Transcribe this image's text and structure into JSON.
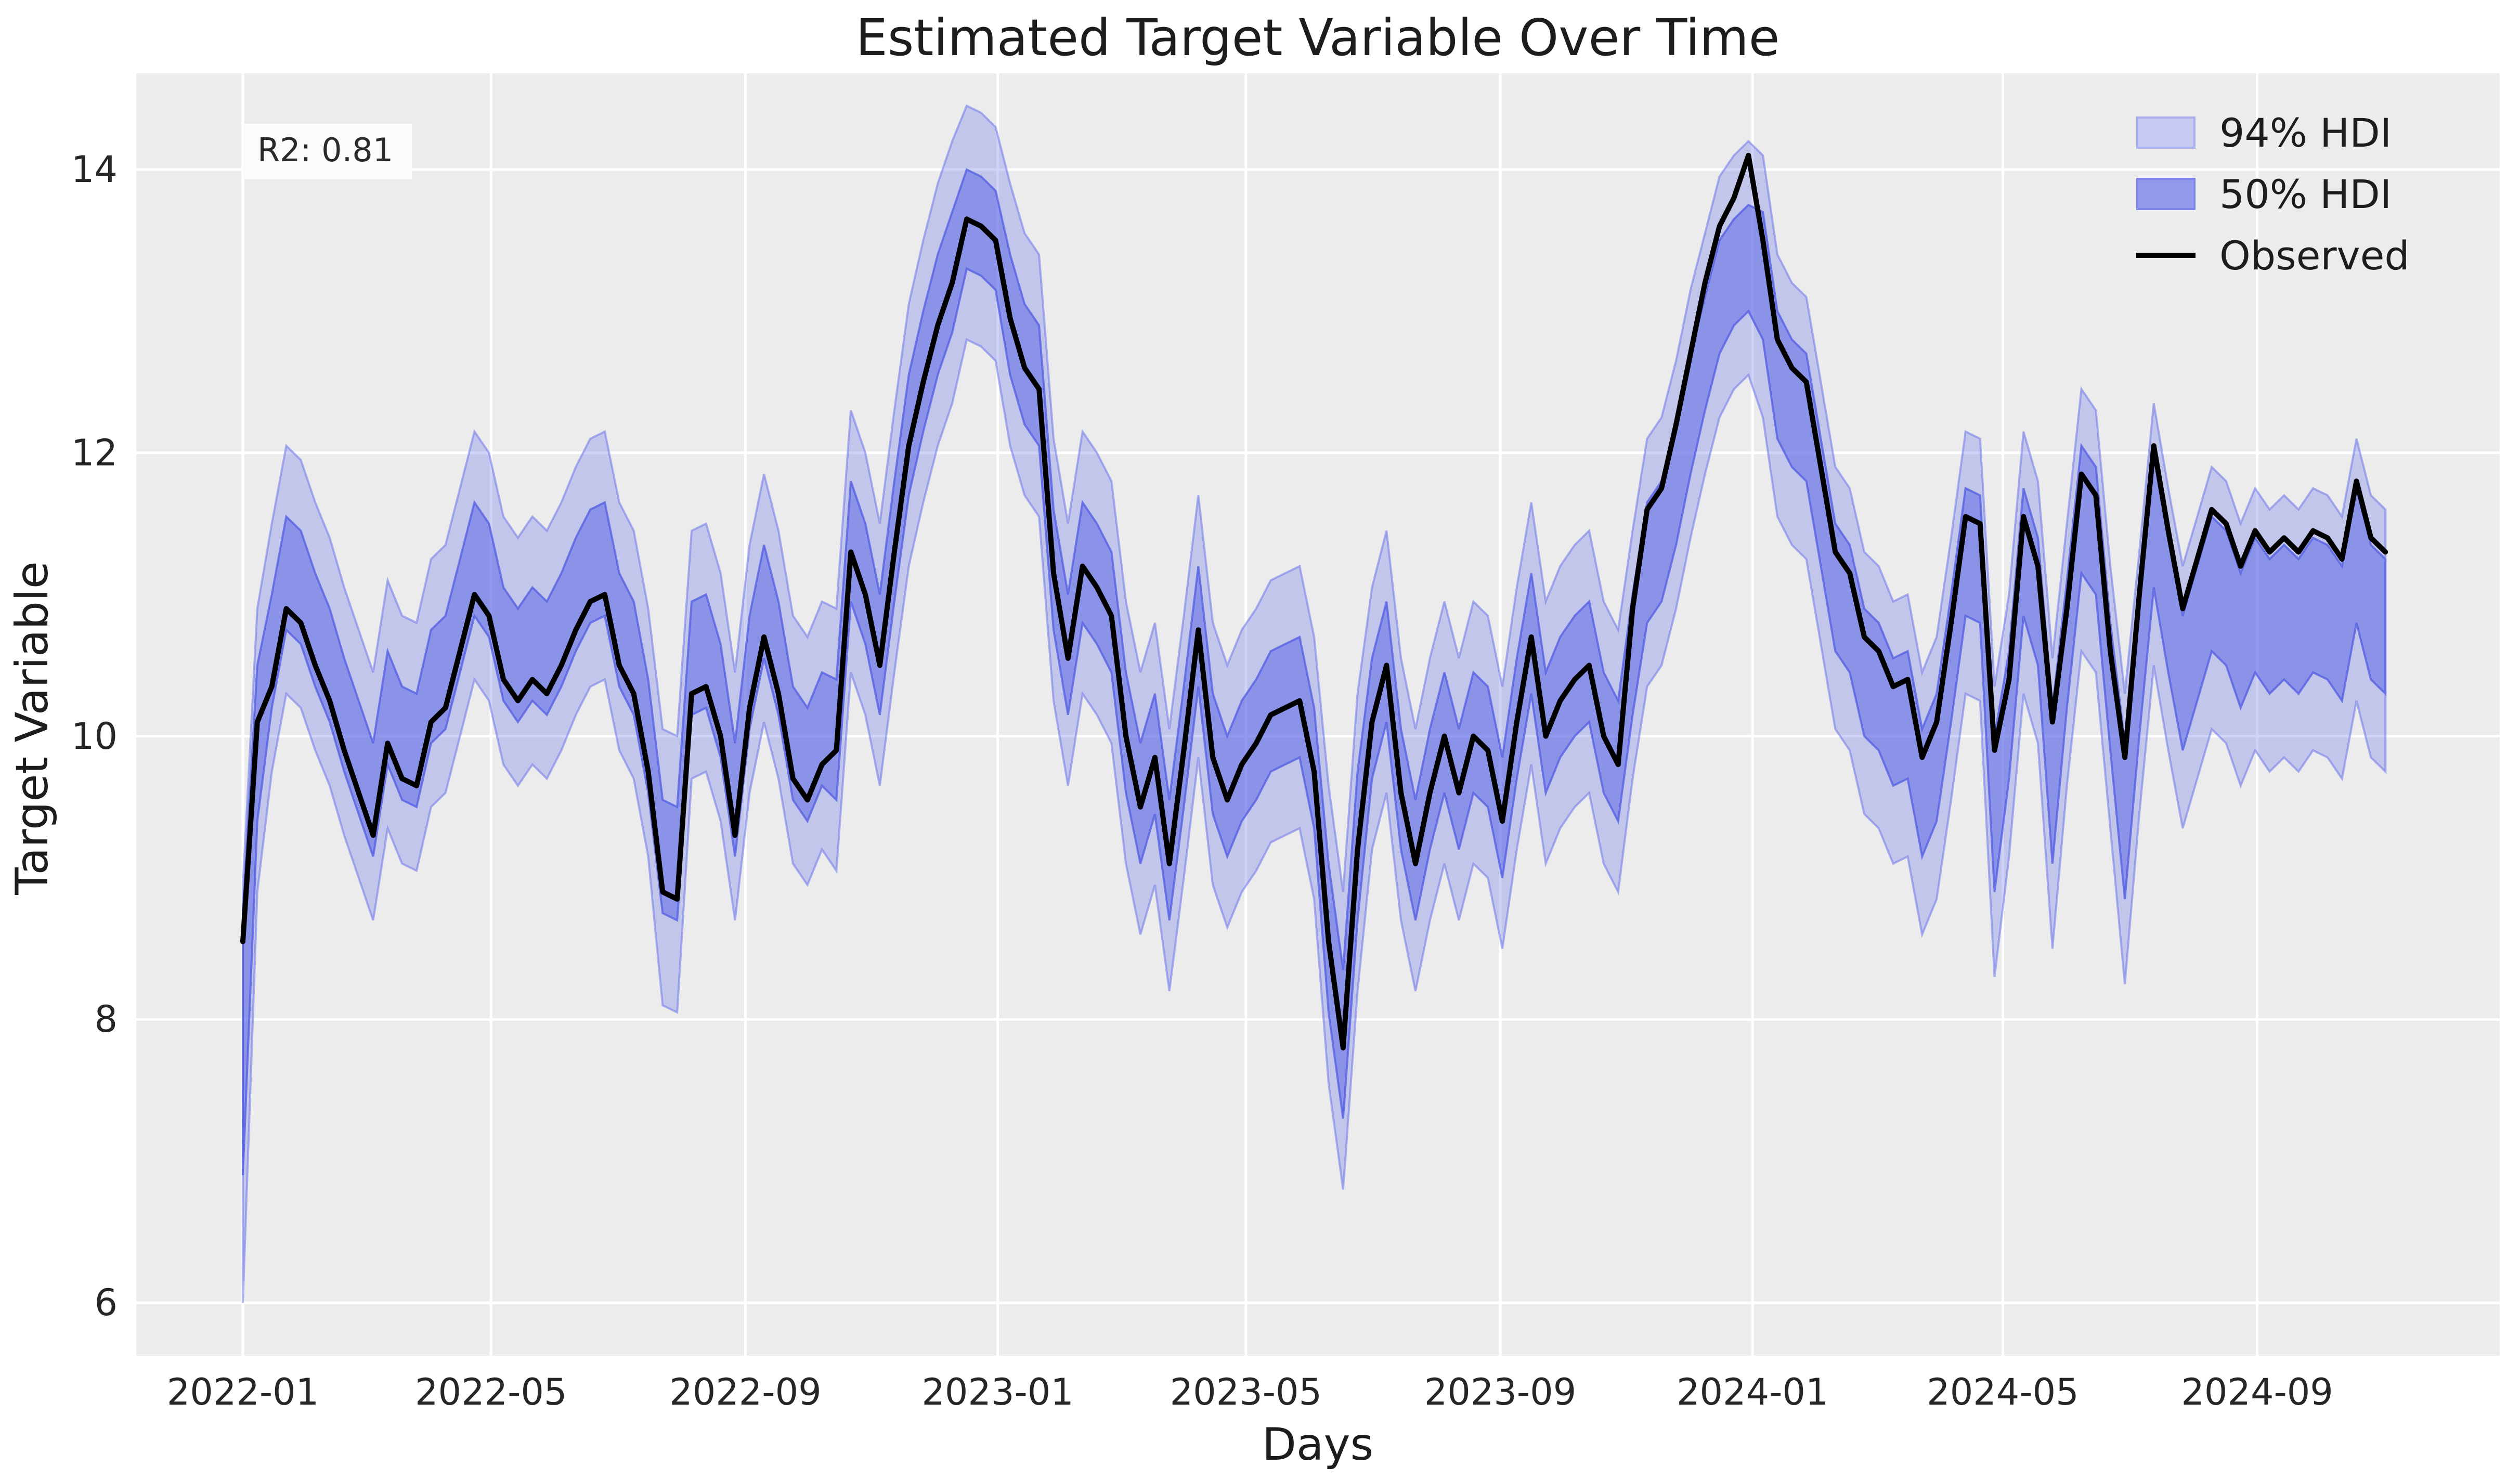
{
  "chart_data": {
    "type": "line",
    "title": "Estimated Target Variable Over Time",
    "xlabel": "Days",
    "ylabel": "Target Variable",
    "annotation": "R2: 0.81",
    "legend": [
      {
        "label": "94% HDI",
        "kind": "band",
        "swatch_fill": "#c7caf1",
        "swatch_edge": "#a9aeee"
      },
      {
        "label": "50% HDI",
        "kind": "band",
        "swatch_fill": "#9298ec",
        "swatch_edge": "#7d84e8"
      },
      {
        "label": "Observed",
        "kind": "line",
        "swatch_fill": "#000000",
        "swatch_edge": "#000000"
      }
    ],
    "colors": {
      "plot_bg": "#ececec",
      "grid": "#ffffff",
      "hdi94_fill": "rgba(99,110,231,0.30)",
      "hdi94_edge": "rgba(110,120,233,0.55)",
      "hdi50_fill": "rgba(99,110,231,0.58)",
      "hdi50_edge": "rgba(80,92,226,0.75)",
      "observed": "#000000",
      "text": "#262626"
    },
    "x_axis": {
      "tick_labels": [
        "2022-01",
        "2022-05",
        "2022-09",
        "2023-01",
        "2023-05",
        "2023-09",
        "2024-01",
        "2024-05",
        "2024-09"
      ],
      "tick_day_offsets": [
        0,
        120,
        243,
        365,
        485,
        608,
        730,
        851,
        974
      ],
      "start_date": "2022-01-01"
    },
    "y_axis": {
      "ticks": [
        6,
        8,
        10,
        12,
        14
      ],
      "range": [
        5.63,
        14.68
      ]
    },
    "x_range_days": [
      -52,
      1091
    ],
    "grid": true,
    "legend_position": "upper right",
    "series": {
      "start_date": "2022-01-01",
      "step_days": 7,
      "observed": [
        8.55,
        10.1,
        10.35,
        10.9,
        10.8,
        10.5,
        10.25,
        9.9,
        9.6,
        9.3,
        9.95,
        9.7,
        9.65,
        10.1,
        10.2,
        10.6,
        11.0,
        10.85,
        10.4,
        10.25,
        10.4,
        10.3,
        10.5,
        10.75,
        10.95,
        11.0,
        10.5,
        10.3,
        9.75,
        8.9,
        8.85,
        10.3,
        10.35,
        10.0,
        9.3,
        10.2,
        10.7,
        10.3,
        9.7,
        9.55,
        9.8,
        9.9,
        11.3,
        11.0,
        10.5,
        11.3,
        12.05,
        12.5,
        12.9,
        13.2,
        13.65,
        13.6,
        13.5,
        12.95,
        12.6,
        12.45,
        11.15,
        10.55,
        11.2,
        11.05,
        10.85,
        10.0,
        9.5,
        9.85,
        9.1,
        9.9,
        10.75,
        9.85,
        9.55,
        9.8,
        9.95,
        10.15,
        10.2,
        10.25,
        9.75,
        8.55,
        7.8,
        9.2,
        10.1,
        10.5,
        9.6,
        9.1,
        9.6,
        10.0,
        9.6,
        10.0,
        9.9,
        9.4,
        10.1,
        10.7,
        10.0,
        10.25,
        10.4,
        10.5,
        10.0,
        9.8,
        10.9,
        11.6,
        11.75,
        12.2,
        12.7,
        13.2,
        13.6,
        13.8,
        14.1,
        13.5,
        12.8,
        12.6,
        12.5,
        11.9,
        11.3,
        11.15,
        10.7,
        10.6,
        10.35,
        10.4,
        9.85,
        10.1,
        10.8,
        11.55,
        11.5,
        9.9,
        10.4,
        11.55,
        11.2,
        10.1,
        10.9,
        11.85,
        11.7,
        10.6,
        9.85,
        11.0,
        12.05,
        11.45,
        10.9,
        11.25,
        11.6,
        11.5,
        11.2,
        11.45,
        11.3,
        11.4,
        11.3,
        11.45,
        11.4,
        11.25,
        11.8,
        11.4,
        11.3
      ],
      "hdi50_lower": [
        6.9,
        9.4,
        10.2,
        10.75,
        10.65,
        10.35,
        10.1,
        9.75,
        9.45,
        9.15,
        9.8,
        9.55,
        9.5,
        9.95,
        10.05,
        10.45,
        10.85,
        10.7,
        10.25,
        10.1,
        10.25,
        10.15,
        10.35,
        10.6,
        10.8,
        10.85,
        10.35,
        10.15,
        9.6,
        8.75,
        8.7,
        10.15,
        10.2,
        9.85,
        9.15,
        10.05,
        10.55,
        10.15,
        9.55,
        9.4,
        9.65,
        9.55,
        10.95,
        10.65,
        10.15,
        10.95,
        11.7,
        12.15,
        12.55,
        12.85,
        13.3,
        13.25,
        13.15,
        12.55,
        12.2,
        12.05,
        10.75,
        10.15,
        10.8,
        10.65,
        10.45,
        9.6,
        9.1,
        9.45,
        8.7,
        9.5,
        10.35,
        9.45,
        9.15,
        9.4,
        9.55,
        9.75,
        9.8,
        9.85,
        9.35,
        8.05,
        7.3,
        8.7,
        9.7,
        10.1,
        9.2,
        8.7,
        9.2,
        9.6,
        9.2,
        9.6,
        9.5,
        9.0,
        9.7,
        10.3,
        9.6,
        9.85,
        10.0,
        10.1,
        9.6,
        9.4,
        10.15,
        10.8,
        10.95,
        11.35,
        11.85,
        12.3,
        12.7,
        12.9,
        13.0,
        12.8,
        12.1,
        11.9,
        11.8,
        11.2,
        10.6,
        10.45,
        10.0,
        9.9,
        9.65,
        9.7,
        9.15,
        9.4,
        10.1,
        10.85,
        10.8,
        8.9,
        9.7,
        10.85,
        10.5,
        9.1,
        10.2,
        11.15,
        11.0,
        9.9,
        8.85,
        10.0,
        11.05,
        10.45,
        9.9,
        10.25,
        10.6,
        10.5,
        10.2,
        10.45,
        10.3,
        10.4,
        10.3,
        10.45,
        10.4,
        10.25,
        10.8,
        10.4,
        10.3
      ],
      "hdi50_upper": [
        8.75,
        10.5,
        11.0,
        11.55,
        11.45,
        11.15,
        10.9,
        10.55,
        10.25,
        9.95,
        10.6,
        10.35,
        10.3,
        10.75,
        10.85,
        11.25,
        11.65,
        11.5,
        11.05,
        10.9,
        11.05,
        10.95,
        11.15,
        11.4,
        11.6,
        11.65,
        11.15,
        10.95,
        10.4,
        9.55,
        9.5,
        10.95,
        11.0,
        10.65,
        9.95,
        10.85,
        11.35,
        10.95,
        10.35,
        10.2,
        10.45,
        10.4,
        11.8,
        11.5,
        11.0,
        11.8,
        12.55,
        13.0,
        13.4,
        13.7,
        14.0,
        13.95,
        13.85,
        13.4,
        13.05,
        12.9,
        11.6,
        11.0,
        11.65,
        11.5,
        11.3,
        10.45,
        9.95,
        10.3,
        9.55,
        10.35,
        11.2,
        10.3,
        10.0,
        10.25,
        10.4,
        10.6,
        10.65,
        10.7,
        10.2,
        9.1,
        8.35,
        9.75,
        10.55,
        10.95,
        10.05,
        9.55,
        10.05,
        10.45,
        10.05,
        10.45,
        10.35,
        9.85,
        10.55,
        11.15,
        10.45,
        10.7,
        10.85,
        10.95,
        10.45,
        10.25,
        11.0,
        11.65,
        11.8,
        12.2,
        12.7,
        13.1,
        13.5,
        13.65,
        13.75,
        13.7,
        13.0,
        12.8,
        12.7,
        12.1,
        11.5,
        11.35,
        10.9,
        10.8,
        10.55,
        10.6,
        10.05,
        10.3,
        11.0,
        11.75,
        11.7,
        10.0,
        10.6,
        11.75,
        11.4,
        10.2,
        11.1,
        12.05,
        11.9,
        10.8,
        9.95,
        10.95,
        12.0,
        11.4,
        10.85,
        11.2,
        11.55,
        11.45,
        11.15,
        11.4,
        11.25,
        11.35,
        11.25,
        11.4,
        11.35,
        11.2,
        11.75,
        11.35,
        11.25
      ],
      "hdi94_lower": [
        6.0,
        8.9,
        9.75,
        10.3,
        10.2,
        9.9,
        9.65,
        9.3,
        9.0,
        8.7,
        9.35,
        9.1,
        9.05,
        9.5,
        9.6,
        10.0,
        10.4,
        10.25,
        9.8,
        9.65,
        9.8,
        9.7,
        9.9,
        10.15,
        10.35,
        10.4,
        9.9,
        9.7,
        9.15,
        8.1,
        8.05,
        9.7,
        9.75,
        9.4,
        8.7,
        9.6,
        10.1,
        9.7,
        9.1,
        8.95,
        9.2,
        9.05,
        10.45,
        10.15,
        9.65,
        10.45,
        11.2,
        11.65,
        12.05,
        12.35,
        12.8,
        12.75,
        12.65,
        12.05,
        11.7,
        11.55,
        10.25,
        9.65,
        10.3,
        10.15,
        9.95,
        9.1,
        8.6,
        8.95,
        8.2,
        9.0,
        9.85,
        8.95,
        8.65,
        8.9,
        9.05,
        9.25,
        9.3,
        9.35,
        8.85,
        7.55,
        6.8,
        8.2,
        9.2,
        9.6,
        8.7,
        8.2,
        8.7,
        9.1,
        8.7,
        9.1,
        9.0,
        8.5,
        9.2,
        9.8,
        9.1,
        9.35,
        9.5,
        9.6,
        9.1,
        8.9,
        9.7,
        10.35,
        10.5,
        10.9,
        11.4,
        11.85,
        12.25,
        12.45,
        12.55,
        12.25,
        11.55,
        11.35,
        11.25,
        10.65,
        10.05,
        9.9,
        9.45,
        9.35,
        9.1,
        9.15,
        8.6,
        8.85,
        9.55,
        10.3,
        10.25,
        8.3,
        9.15,
        10.3,
        9.95,
        8.5,
        9.65,
        10.6,
        10.45,
        9.35,
        8.25,
        9.45,
        10.5,
        9.9,
        9.35,
        9.7,
        10.05,
        9.95,
        9.65,
        9.9,
        9.75,
        9.85,
        9.75,
        9.9,
        9.85,
        9.7,
        10.25,
        9.85,
        9.75
      ],
      "hdi94_upper": [
        8.95,
        10.9,
        11.5,
        12.05,
        11.95,
        11.65,
        11.4,
        11.05,
        10.75,
        10.45,
        11.1,
        10.85,
        10.8,
        11.25,
        11.35,
        11.75,
        12.15,
        12.0,
        11.55,
        11.4,
        11.55,
        11.45,
        11.65,
        11.9,
        12.1,
        12.15,
        11.65,
        11.45,
        10.9,
        10.05,
        10.0,
        11.45,
        11.5,
        11.15,
        10.45,
        11.35,
        11.85,
        11.45,
        10.85,
        10.7,
        10.95,
        10.9,
        12.3,
        12.0,
        11.5,
        12.3,
        13.05,
        13.5,
        13.9,
        14.2,
        14.45,
        14.4,
        14.3,
        13.9,
        13.55,
        13.4,
        12.1,
        11.5,
        12.15,
        12.0,
        11.8,
        10.95,
        10.45,
        10.8,
        10.05,
        10.85,
        11.7,
        10.8,
        10.5,
        10.75,
        10.9,
        11.1,
        11.15,
        11.2,
        10.7,
        9.65,
        8.9,
        10.3,
        11.05,
        11.45,
        10.55,
        10.05,
        10.55,
        10.95,
        10.55,
        10.95,
        10.85,
        10.35,
        11.05,
        11.65,
        10.95,
        11.2,
        11.35,
        11.45,
        10.95,
        10.75,
        11.45,
        12.1,
        12.25,
        12.65,
        13.15,
        13.55,
        13.95,
        14.1,
        14.2,
        14.1,
        13.4,
        13.2,
        13.1,
        12.5,
        11.9,
        11.75,
        11.3,
        11.2,
        10.95,
        11.0,
        10.45,
        10.7,
        11.4,
        12.15,
        12.1,
        10.35,
        11.0,
        12.15,
        11.8,
        10.55,
        11.5,
        12.45,
        12.3,
        11.2,
        10.3,
        11.3,
        12.35,
        11.75,
        11.2,
        11.55,
        11.9,
        11.8,
        11.5,
        11.75,
        11.6,
        11.7,
        11.6,
        11.75,
        11.7,
        11.55,
        12.1,
        11.7,
        11.6
      ]
    }
  }
}
